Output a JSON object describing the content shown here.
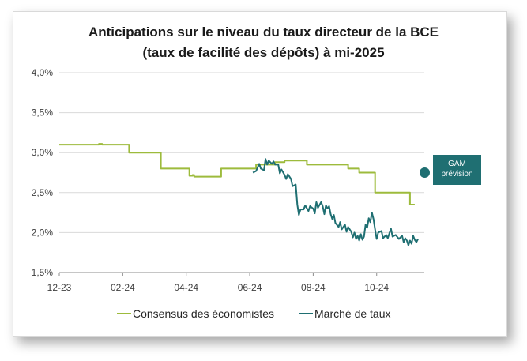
{
  "chart_data": {
    "type": "line",
    "title": "Anticipations sur le niveau du taux directeur de la BCE",
    "subtitle": "(taux de facilité des dépôts) à mi-2025",
    "y_ticks": [
      "4,0%",
      "3,5%",
      "3,0%",
      "2,5%",
      "2,0%",
      "1,5%"
    ],
    "y_tick_values": [
      4.0,
      3.5,
      3.0,
      2.5,
      2.0,
      1.5
    ],
    "ylim": [
      1.5,
      4.0
    ],
    "x_ticks": [
      "12-23",
      "02-24",
      "04-24",
      "06-24",
      "08-24",
      "10-24"
    ],
    "xlim": [
      0,
      11.5
    ],
    "grid": "horizontal",
    "legend_position": "bottom",
    "annotation": {
      "line1": "GAM",
      "line2": "prévision",
      "value": 2.75
    },
    "series": [
      {
        "name": "Consensus des économistes",
        "color": "#9dbb3c",
        "step": true,
        "points": [
          [
            0,
            3.1
          ],
          [
            1.2,
            3.1
          ],
          [
            1.25,
            3.11
          ],
          [
            1.35,
            3.1
          ],
          [
            2.15,
            3.1
          ],
          [
            2.2,
            3.0
          ],
          [
            3.15,
            3.0
          ],
          [
            3.2,
            2.8
          ],
          [
            4.05,
            2.8
          ],
          [
            4.1,
            2.71
          ],
          [
            4.2,
            2.72
          ],
          [
            4.25,
            2.7
          ],
          [
            5.05,
            2.7
          ],
          [
            5.1,
            2.8
          ],
          [
            6.15,
            2.8
          ],
          [
            6.2,
            2.85
          ],
          [
            6.75,
            2.85
          ],
          [
            6.8,
            2.88
          ],
          [
            7.05,
            2.88
          ],
          [
            7.1,
            2.9
          ],
          [
            7.75,
            2.9
          ],
          [
            7.8,
            2.85
          ],
          [
            9.05,
            2.85
          ],
          [
            9.1,
            2.8
          ],
          [
            9.4,
            2.8
          ],
          [
            9.45,
            2.75
          ],
          [
            9.9,
            2.75
          ],
          [
            9.95,
            2.5
          ],
          [
            11.0,
            2.5
          ],
          [
            11.05,
            2.35
          ],
          [
            11.2,
            2.35
          ]
        ]
      },
      {
        "name": "Marché de taux",
        "color": "#1f6f72",
        "step": false,
        "points": [
          [
            6.1,
            2.75
          ],
          [
            6.2,
            2.77
          ],
          [
            6.3,
            2.86
          ],
          [
            6.35,
            2.8
          ],
          [
            6.45,
            2.78
          ],
          [
            6.5,
            2.92
          ],
          [
            6.55,
            2.85
          ],
          [
            6.6,
            2.9
          ],
          [
            6.7,
            2.86
          ],
          [
            6.75,
            2.89
          ],
          [
            6.8,
            2.85
          ],
          [
            6.9,
            2.85
          ],
          [
            6.95,
            2.74
          ],
          [
            7.0,
            2.79
          ],
          [
            7.1,
            2.72
          ],
          [
            7.15,
            2.67
          ],
          [
            7.2,
            2.73
          ],
          [
            7.3,
            2.67
          ],
          [
            7.35,
            2.58
          ],
          [
            7.45,
            2.6
          ],
          [
            7.5,
            2.35
          ],
          [
            7.55,
            2.22
          ],
          [
            7.6,
            2.29
          ],
          [
            7.7,
            2.29
          ],
          [
            7.75,
            2.34
          ],
          [
            7.85,
            2.27
          ],
          [
            7.9,
            2.33
          ],
          [
            8.0,
            2.3
          ],
          [
            8.05,
            2.24
          ],
          [
            8.1,
            2.38
          ],
          [
            8.15,
            2.31
          ],
          [
            8.25,
            2.38
          ],
          [
            8.3,
            2.33
          ],
          [
            8.35,
            2.23
          ],
          [
            8.4,
            2.34
          ],
          [
            8.45,
            2.3
          ],
          [
            8.5,
            2.33
          ],
          [
            8.55,
            2.23
          ],
          [
            8.6,
            2.17
          ],
          [
            8.65,
            2.22
          ],
          [
            8.7,
            2.12
          ],
          [
            8.8,
            2.07
          ],
          [
            8.85,
            2.13
          ],
          [
            8.9,
            2.04
          ],
          [
            9.0,
            2.1
          ],
          [
            9.05,
            2.01
          ],
          [
            9.1,
            2.07
          ],
          [
            9.2,
            2.01
          ],
          [
            9.25,
            1.94
          ],
          [
            9.3,
            2.0
          ],
          [
            9.35,
            1.92
          ],
          [
            9.4,
            1.96
          ],
          [
            9.45,
            1.9
          ],
          [
            9.5,
            1.98
          ],
          [
            9.55,
            1.91
          ],
          [
            9.6,
            1.95
          ],
          [
            9.65,
            2.1
          ],
          [
            9.7,
            2.06
          ],
          [
            9.75,
            2.18
          ],
          [
            9.8,
            2.13
          ],
          [
            9.85,
            2.25
          ],
          [
            9.9,
            2.17
          ],
          [
            9.95,
            2.04
          ],
          [
            10.0,
            1.92
          ],
          [
            10.05,
            2.0
          ],
          [
            10.15,
            2.02
          ],
          [
            10.2,
            1.93
          ],
          [
            10.3,
            1.97
          ],
          [
            10.35,
            1.93
          ],
          [
            10.45,
            2.05
          ],
          [
            10.5,
            1.95
          ],
          [
            10.6,
            1.97
          ],
          [
            10.7,
            1.92
          ],
          [
            10.8,
            1.96
          ],
          [
            10.85,
            1.88
          ],
          [
            10.9,
            1.93
          ],
          [
            10.95,
            1.9
          ],
          [
            11.0,
            1.84
          ],
          [
            11.05,
            1.9
          ],
          [
            11.1,
            1.86
          ],
          [
            11.15,
            1.96
          ],
          [
            11.2,
            1.91
          ],
          [
            11.25,
            1.88
          ],
          [
            11.3,
            1.92
          ]
        ]
      }
    ]
  }
}
